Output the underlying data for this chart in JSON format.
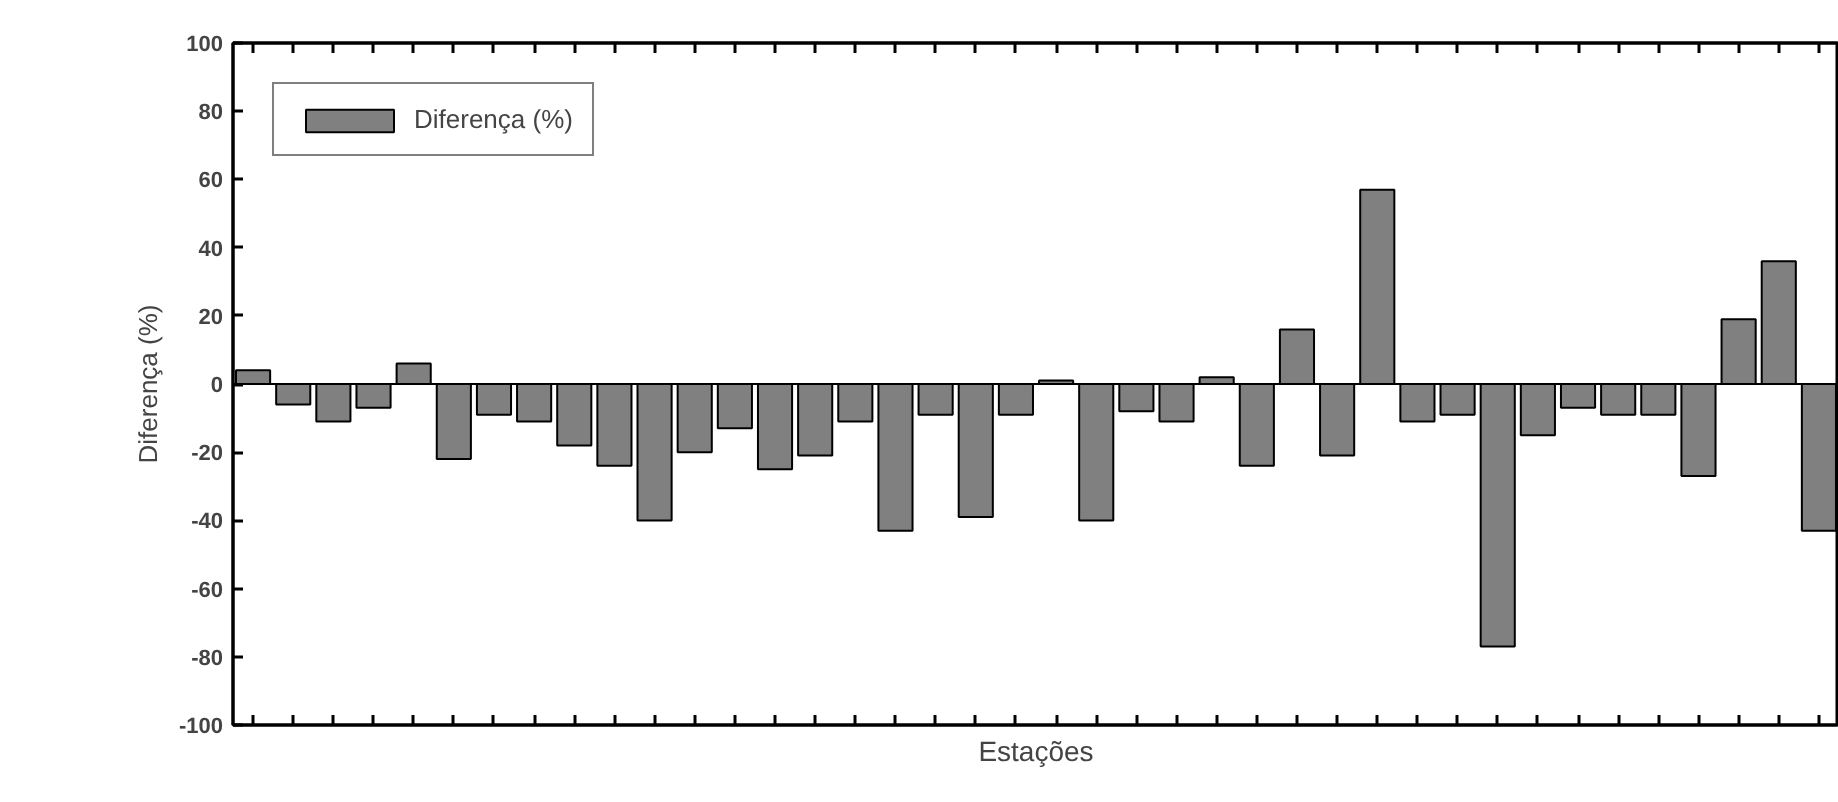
{
  "chart_data": {
    "type": "bar",
    "xlabel": "Estações",
    "ylabel": "Diferença (%)",
    "categories": [
      null,
      null,
      null,
      null,
      null,
      null,
      null,
      null,
      null,
      null,
      null,
      null,
      null,
      null,
      null,
      null,
      null,
      null,
      null,
      null,
      null,
      null,
      null,
      null,
      null,
      null,
      null,
      null,
      null,
      null,
      null,
      null,
      null,
      null,
      null,
      null,
      null,
      null,
      null,
      null
    ],
    "series": [
      {
        "name": "Diferença (%)",
        "color": "#808080",
        "values": [
          4,
          -6,
          -11,
          -7,
          6,
          -22,
          -9,
          -11,
          -18,
          -24,
          -40,
          -20,
          -13,
          -25,
          -21,
          -11,
          -43,
          -9,
          -39,
          -9,
          1,
          -40,
          -8,
          -11,
          2,
          -24,
          16,
          -21,
          57,
          -11,
          -9,
          -77,
          -15,
          -7,
          -9,
          -9,
          -27,
          19,
          36,
          -43
        ]
      }
    ],
    "ylim": [
      -100,
      100
    ],
    "yticks": [
      -100,
      -80,
      -60,
      -40,
      -20,
      0,
      20,
      40,
      60,
      80,
      100
    ],
    "ref_lines": [
      {
        "axis": "y",
        "value": 0,
        "color": "#000000"
      }
    ],
    "grid": false,
    "legend": "top left",
    "tick_labels": "y"
  }
}
